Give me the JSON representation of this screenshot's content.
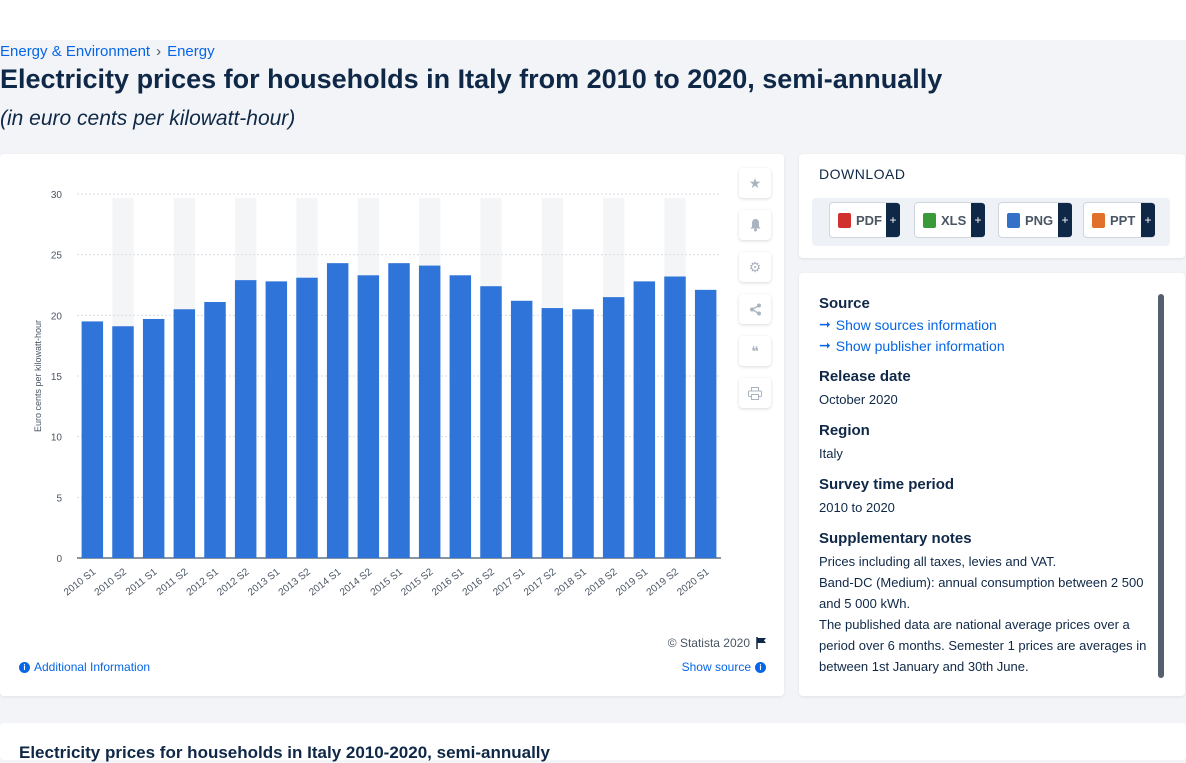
{
  "breadcrumb": {
    "item1": "Energy & Environment",
    "separator": "›",
    "item2": "Energy"
  },
  "page": {
    "title": "Electricity prices for households in Italy from 2010 to 2020, semi-annually",
    "subtitle": "(in euro cents per kilowatt-hour)"
  },
  "chart_card": {
    "copyright": "© Statista 2020",
    "additional_info": "Additional Information",
    "show_source": "Show source",
    "tools": [
      "star-icon",
      "bell-icon",
      "gear-icon",
      "share-icon",
      "quote-icon",
      "print-icon"
    ]
  },
  "download": {
    "title": "DOWNLOAD",
    "buttons": [
      {
        "label": "PDF",
        "icon": "pdf-icon",
        "color": "#d0312d"
      },
      {
        "label": "XLS",
        "icon": "xls-icon",
        "color": "#3a9a3a"
      },
      {
        "label": "PNG",
        "icon": "png-icon",
        "color": "#3470c8"
      },
      {
        "label": "PPT",
        "icon": "ppt-icon",
        "color": "#e0702a"
      }
    ],
    "plus": "+"
  },
  "meta": {
    "source_heading": "Source",
    "show_sources": "Show sources information",
    "show_publisher": "Show publisher information",
    "release_heading": "Release date",
    "release_value": "October 2020",
    "region_heading": "Region",
    "region_value": "Italy",
    "survey_heading": "Survey time period",
    "survey_value": "2010 to 2020",
    "notes_heading": "Supplementary notes",
    "notes_1": "Prices including all taxes, levies and VAT.",
    "notes_2": "Band-DC (Medium): annual consumption between 2 500 and 5 000 kWh.",
    "notes_3": "The published data are national average prices over a period over 6 months. Semester 1 prices are averages in between 1st January and 30th June."
  },
  "bottom": {
    "title": "Electricity prices for households in Italy 2010-2020, semi-annually"
  },
  "colors": {
    "bar": "#2f74d9",
    "accent": "#0666e5",
    "band": "#f4f5f7"
  },
  "chart_data": {
    "type": "bar",
    "categories": [
      "2010 S1",
      "2010 S2",
      "2011 S1",
      "2011 S2",
      "2012 S1",
      "2012 S2",
      "2013 S1",
      "2013 S2",
      "2014 S1",
      "2014 S2",
      "2015 S1",
      "2015 S2",
      "2016 S1",
      "2016 S2",
      "2017 S1",
      "2017 S2",
      "2018 S1",
      "2018 S2",
      "2019 S1",
      "2019 S2",
      "2020 S1"
    ],
    "values": [
      19.5,
      19.1,
      19.7,
      20.5,
      21.1,
      22.9,
      22.8,
      23.1,
      24.3,
      23.3,
      24.3,
      24.1,
      23.3,
      22.4,
      21.2,
      20.6,
      20.5,
      21.5,
      22.8,
      23.2,
      22.1
    ],
    "xlabel": "",
    "ylabel": "Euro cents per kilowatt-hour",
    "ylim": [
      0,
      30
    ],
    "yticks": [
      0,
      5,
      10,
      15,
      20,
      25,
      30
    ],
    "grid": true
  }
}
